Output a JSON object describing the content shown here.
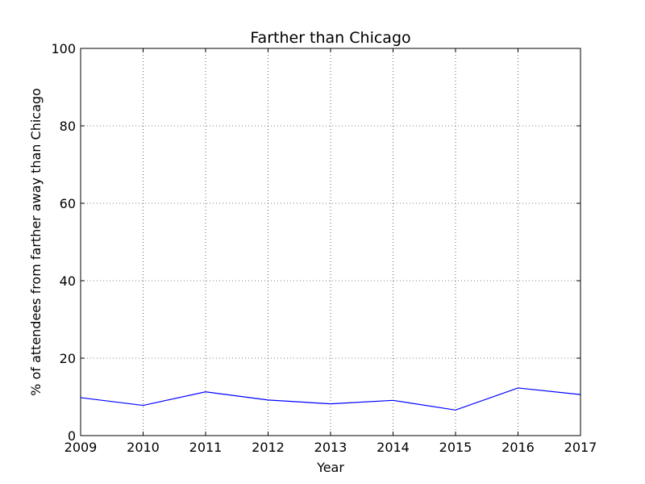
{
  "chart_data": {
    "type": "line",
    "title": "Farther than Chicago",
    "xlabel": "Year",
    "ylabel": "% of attendees from farther away than Chicago",
    "x": [
      2009,
      2010,
      2011,
      2012,
      2013,
      2014,
      2015,
      2016,
      2017
    ],
    "series": [
      {
        "values": [
          9.8,
          7.8,
          11.3,
          9.2,
          8.2,
          9.1,
          6.6,
          12.3,
          10.6
        ],
        "color": "#0000ff"
      }
    ],
    "xlim": [
      2009,
      2017
    ],
    "ylim": [
      0,
      100
    ],
    "xticks": [
      "2009",
      "2010",
      "2011",
      "2012",
      "2013",
      "2014",
      "2015",
      "2016",
      "2017"
    ],
    "yticks": [
      "0",
      "20",
      "40",
      "60",
      "80",
      "100"
    ],
    "grid": true,
    "grid_style": "dotted"
  }
}
